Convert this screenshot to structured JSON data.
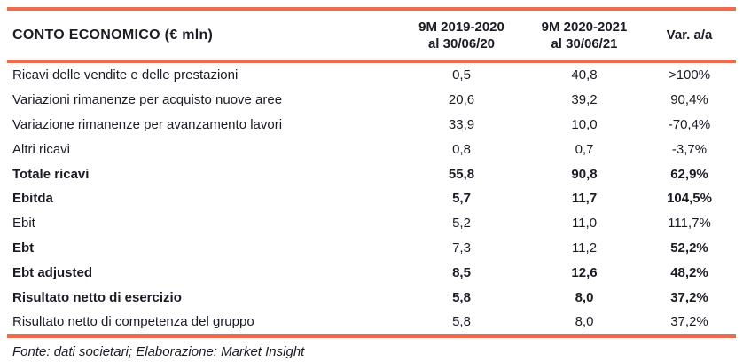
{
  "accent_color": "#ED6A4F",
  "text_color": "#1B1B24",
  "table": {
    "title": "CONTO ECONOMICO (€ mln)",
    "columns": [
      {
        "line1": "9M 2019-2020",
        "line2": "al 30/06/20"
      },
      {
        "line1": "9M 2020-2021",
        "line2": "al 30/06/21"
      },
      {
        "line1": "Var. a/a",
        "line2": ""
      }
    ],
    "rows": [
      {
        "label": "Ricavi delle vendite e delle prestazioni",
        "period1": "0,5",
        "period2": "40,8",
        "var": ">100%"
      },
      {
        "label": "Variazioni rimanenze per acquisto nuove aree",
        "period1": "20,6",
        "period2": "39,2",
        "var": "90,4%"
      },
      {
        "label": "Variazione rimanenze per avanzamento lavori",
        "period1": "33,9",
        "period2": "10,0",
        "var": "-70,4%"
      },
      {
        "label": "Altri ricavi",
        "period1": "0,8",
        "period2": "0,7",
        "var": "-3,7%"
      },
      {
        "label": "Totale ricavi",
        "period1": "55,8",
        "period2": "90,8",
        "var": "62,9%"
      },
      {
        "label": "Ebitda",
        "period1": "5,7",
        "period2": "11,7",
        "var": "104,5%"
      },
      {
        "label": "Ebit",
        "period1": "5,2",
        "period2": "11,0",
        "var": "111,7%"
      },
      {
        "label": "Ebt",
        "period1": "7,3",
        "period2": "11,2",
        "var": "52,2%"
      },
      {
        "label": "Ebt adjusted",
        "period1": "8,5",
        "period2": "12,6",
        "var": "48,2%"
      },
      {
        "label": "Risultato netto di esercizio",
        "period1": "5,8",
        "period2": "8,0",
        "var": "37,2%"
      },
      {
        "label": "Risultato netto di competenza del gruppo",
        "period1": "5,8",
        "period2": "8,0",
        "var": "37,2%"
      }
    ]
  },
  "footer": {
    "source": "Fonte: dati societari; Elaborazione: Market Insight"
  }
}
